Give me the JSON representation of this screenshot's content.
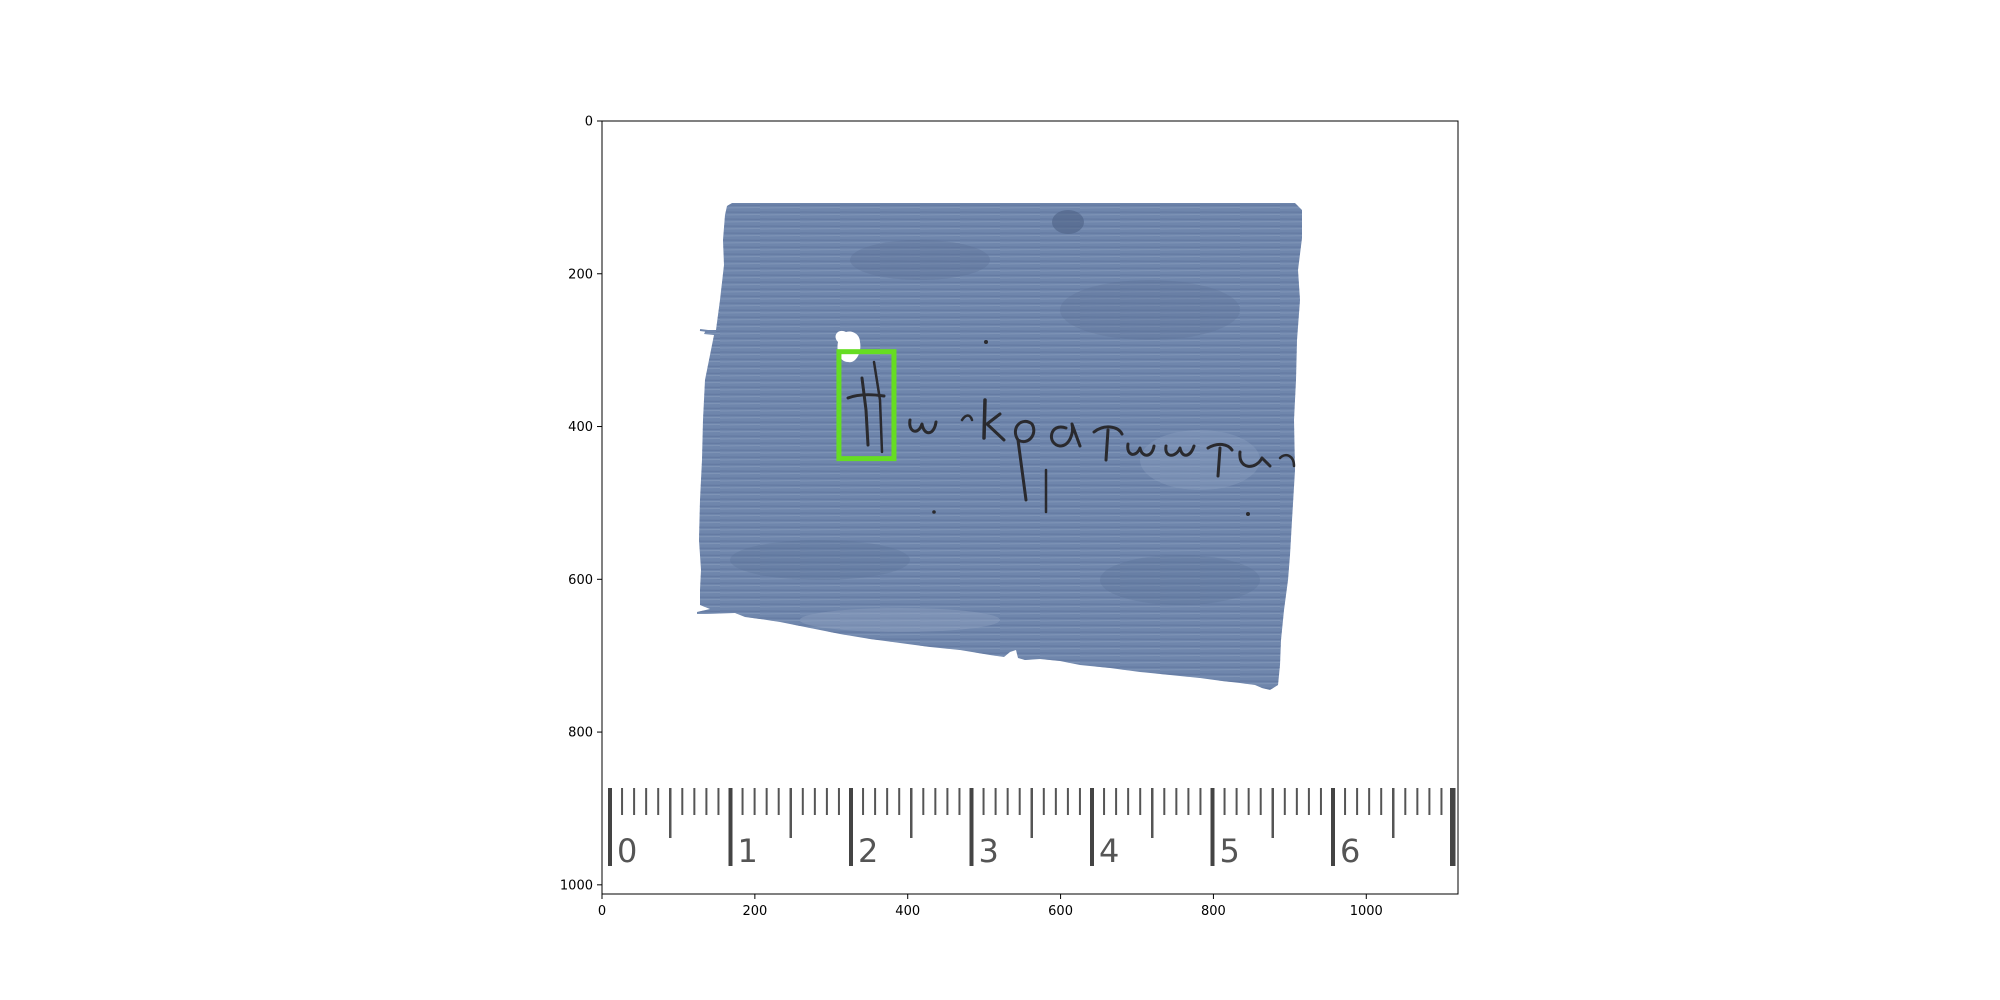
{
  "plot": {
    "x_axis": {
      "range": [
        0,
        1120
      ],
      "ticks": [
        0,
        200,
        400,
        600,
        800,
        1000
      ]
    },
    "y_axis": {
      "range": [
        0,
        1012
      ],
      "inverted": true,
      "ticks": [
        0,
        200,
        400,
        600,
        800,
        1000
      ]
    }
  },
  "image": {
    "subject": "papyrus fragment with Greek handwriting",
    "papyrus_color": "#6f86ac",
    "ink_color": "#2a2a2e"
  },
  "annotation": {
    "type": "bounding-box",
    "color": "#66dd22",
    "box": {
      "x0": 310,
      "y0": 302,
      "x1": 382,
      "y1": 442
    }
  },
  "ruler": {
    "numbers": [
      "0",
      "1",
      "2",
      "3",
      "4",
      "5",
      "6"
    ]
  }
}
